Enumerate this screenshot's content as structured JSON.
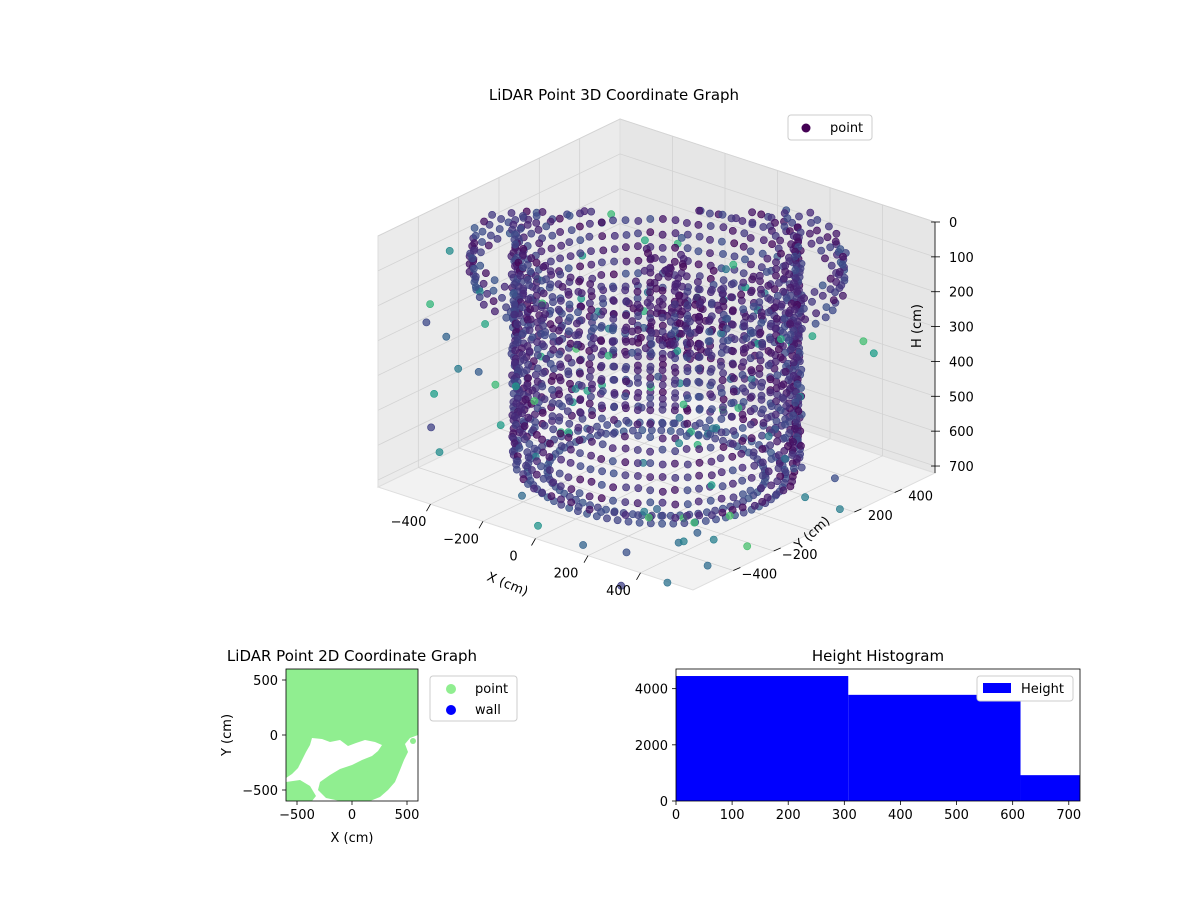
{
  "chart_data": [
    {
      "type": "scatter3d",
      "title": "LiDAR Point 3D Coordinate Graph",
      "xlabel": "X (cm)",
      "ylabel": "Y (cm)",
      "zlabel": "H (cm)",
      "xticks": [
        -400,
        -200,
        0,
        200,
        400
      ],
      "yticks": [
        -400,
        -200,
        200,
        400
      ],
      "zticks": [
        0,
        100,
        200,
        300,
        400,
        500,
        600,
        700
      ],
      "xlim": [
        -600,
        600
      ],
      "ylim": [
        -600,
        600
      ],
      "zlim": [
        0,
        720
      ],
      "z_axis_inverted": true,
      "colormap": "viridis",
      "legend": {
        "placement": "top-right",
        "entries": [
          {
            "label": "point",
            "color": "#440154"
          }
        ]
      },
      "grid": true,
      "structure": {
        "inner_ring": {
          "radius": 430,
          "h_range": [
            20,
            700
          ]
        },
        "outer_ring": {
          "radius": 560,
          "h_range": [
            60,
            170
          ]
        },
        "floor_rings": [
          {
            "radius": 330,
            "h": 700
          },
          {
            "radius": 390,
            "h": 700
          }
        ]
      }
    },
    {
      "type": "scatter",
      "title": "LiDAR Point 2D Coordinate Graph",
      "xlabel": "X (cm)",
      "ylabel": "Y (cm)",
      "xticks": [
        -500,
        0,
        500
      ],
      "yticks": [
        -500,
        0,
        500
      ],
      "xlim": [
        -600,
        600
      ],
      "ylim": [
        -600,
        600
      ],
      "legend": {
        "placement": "outside-right",
        "entries": [
          {
            "label": "point",
            "color": "#90ee90"
          },
          {
            "label": "wall",
            "color": "#0000ff"
          }
        ]
      }
    },
    {
      "type": "bar",
      "title": "Height Histogram",
      "xticks": [
        0,
        100,
        200,
        300,
        400,
        500,
        600,
        700
      ],
      "yticks": [
        0,
        2000,
        4000
      ],
      "xlim": [
        0,
        720
      ],
      "ylim": [
        0,
        4700
      ],
      "bins": [
        {
          "start": 0,
          "end": 307,
          "count": 4450
        },
        {
          "start": 307,
          "end": 614,
          "count": 3780
        },
        {
          "start": 614,
          "end": 720,
          "count": 920
        }
      ],
      "color": "#0000ff",
      "legend": {
        "placement": "top-right",
        "entries": [
          {
            "label": "Height",
            "color": "#0000ff"
          }
        ]
      }
    }
  ]
}
